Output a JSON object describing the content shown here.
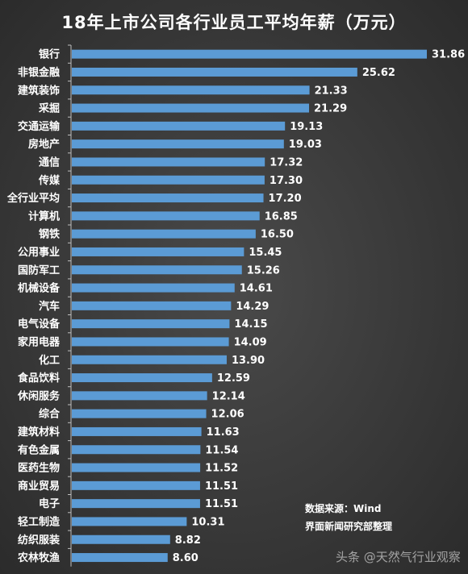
{
  "title": "18年上市公司各行业员工平均年薪（万元）",
  "source_line1": "数据来源：Wind",
  "source_line2": "界面新闻研究部整理",
  "watermark": "头条 @天然气行业观察",
  "colors": {
    "bar": "#5b9bd5",
    "axis": "#bfbfbf"
  },
  "chart_data": {
    "type": "bar",
    "orientation": "horizontal",
    "title": "18年上市公司各行业员工平均年薪（万元）",
    "categories": [
      "银行",
      "非银金融",
      "建筑装饰",
      "采掘",
      "交通运输",
      "房地产",
      "通信",
      "传媒",
      "全行业平均",
      "计算机",
      "钢铁",
      "公用事业",
      "国防军工",
      "机械设备",
      "汽车",
      "电气设备",
      "家用电器",
      "化工",
      "食品饮料",
      "休闲服务",
      "综合",
      "建筑材料",
      "有色金属",
      "医药生物",
      "商业贸易",
      "电子",
      "轻工制造",
      "纺织服装",
      "农林牧渔"
    ],
    "values": [
      31.86,
      25.62,
      21.33,
      21.29,
      19.13,
      19.03,
      17.32,
      17.3,
      17.2,
      16.85,
      16.5,
      15.45,
      15.26,
      14.61,
      14.29,
      14.15,
      14.09,
      13.9,
      12.59,
      12.14,
      12.06,
      11.63,
      11.54,
      11.52,
      11.51,
      11.51,
      10.31,
      8.82,
      8.6
    ],
    "value_labels": [
      "31.86",
      "25.62",
      "21.33",
      "21.29",
      "19.13",
      "19.03",
      "17.32",
      "17.30",
      "17.20",
      "16.85",
      "16.50",
      "15.45",
      "15.26",
      "14.61",
      "14.29",
      "14.15",
      "14.09",
      "13.90",
      "12.59",
      "12.14",
      "12.06",
      "11.63",
      "11.54",
      "11.52",
      "11.51",
      "11.51",
      "10.31",
      "8.82",
      "8.60"
    ],
    "xlim": [
      0,
      31.86
    ],
    "grid": false,
    "legend": "none"
  }
}
